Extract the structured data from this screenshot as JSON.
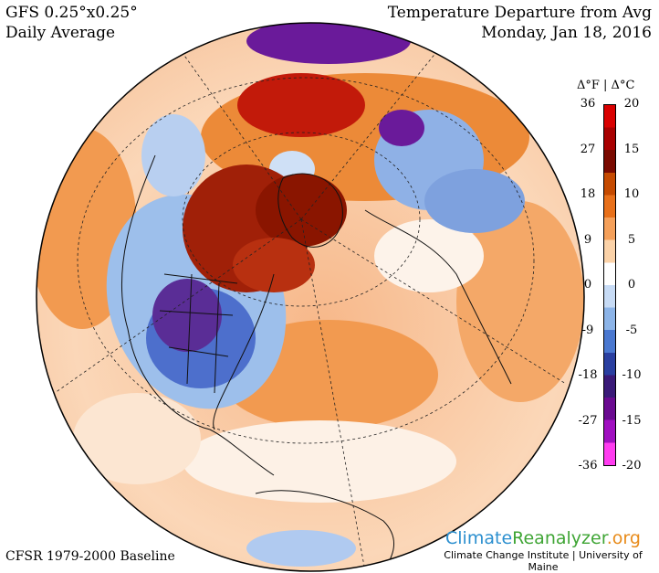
{
  "header": {
    "model": "GFS 0.25°x0.25°",
    "period": "Daily Average",
    "title": "Temperature Departure from Avg",
    "date": "Monday, Jan 18, 2016"
  },
  "legend": {
    "header": "Δ°F | Δ°C",
    "ticks_f": [
      "36",
      "27",
      "18",
      "9",
      "0",
      "-9",
      "-18",
      "-27",
      "-36"
    ],
    "ticks_c": [
      "20",
      "15",
      "10",
      "5",
      "0",
      "-5",
      "-10",
      "-15",
      "-20"
    ],
    "colors": [
      "#d90000",
      "#a80000",
      "#7a0a00",
      "#c54a00",
      "#e8701a",
      "#f5a05a",
      "#fbd2a8",
      "#ffffff",
      "#c7dbf5",
      "#8cb4e8",
      "#4a78d0",
      "#2a3fa0",
      "#3a1a78",
      "#6a0a90",
      "#a010c0",
      "#ff3cf0"
    ]
  },
  "baseline": "CFSR 1979-2000 Baseline",
  "logo": {
    "name_part1": "Climate",
    "name_part2": "Reanalyzer",
    "name_part3": ".org",
    "subtitle": "Climate Change Institute | University of Maine"
  }
}
